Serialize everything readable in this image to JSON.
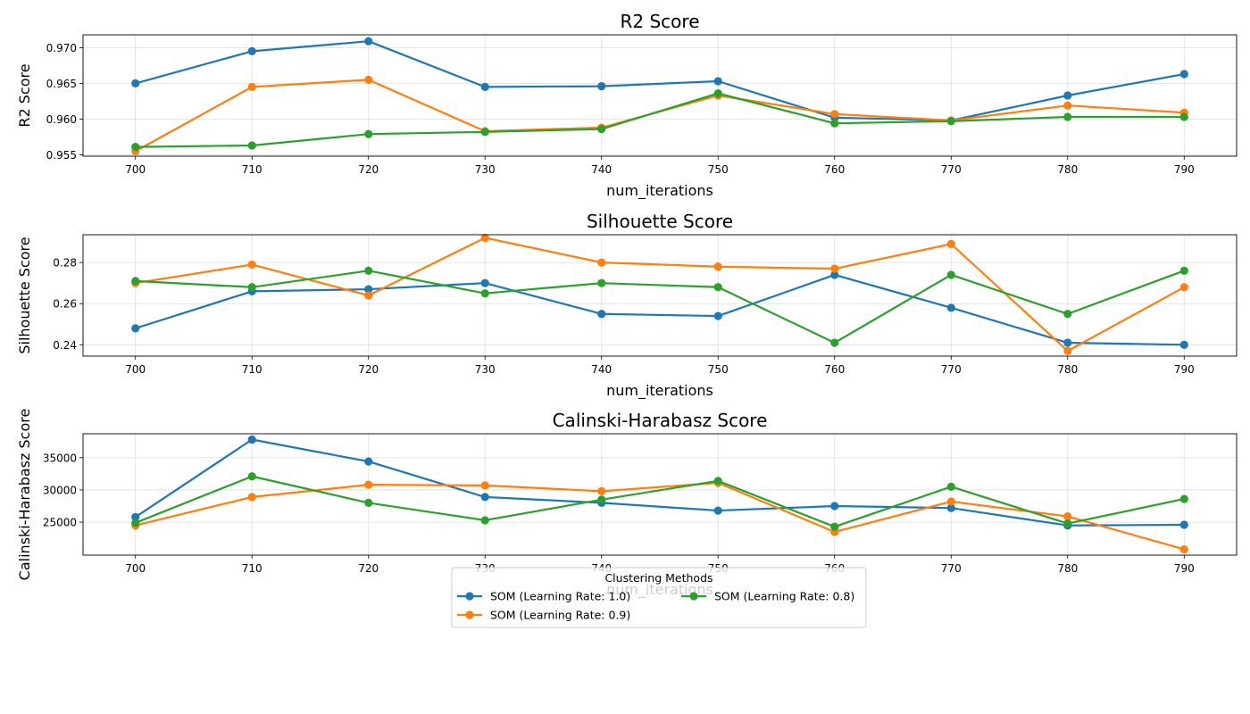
{
  "legend": {
    "title": "Clustering Methods",
    "placement": "lower-center",
    "entries": [
      "SOM (Learning Rate: 1.0)",
      "SOM (Learning Rate: 0.9)",
      "SOM (Learning Rate: 0.8)"
    ]
  },
  "colors": {
    "SOM (Learning Rate: 1.0)": "#1f77b4",
    "SOM (Learning Rate: 0.9)": "#ff7f0e",
    "SOM (Learning Rate: 0.8)": "#2ca02c",
    "grid": "#dddddd",
    "axes": "#000000"
  },
  "chart_data": [
    {
      "type": "line",
      "title": "R2 Score",
      "xlabel": "num_iterations",
      "ylabel": "R2 Score",
      "x": [
        700,
        710,
        720,
        730,
        740,
        750,
        760,
        770,
        780,
        790
      ],
      "xlim": [
        695.5,
        794.5
      ],
      "ylim": [
        0.9548,
        0.9718
      ],
      "yticks": [
        0.955,
        0.96,
        0.965,
        0.97
      ],
      "ytick_labels": [
        "0.955",
        "0.960",
        "0.965",
        "0.970"
      ],
      "grid": true,
      "series": [
        {
          "name": "SOM (Learning Rate: 1.0)",
          "values": [
            0.965,
            0.9695,
            0.9709,
            0.9645,
            0.9646,
            0.9653,
            0.9602,
            0.9598,
            0.9633,
            0.9663
          ]
        },
        {
          "name": "SOM (Learning Rate: 0.9)",
          "values": [
            0.9555,
            0.9645,
            0.9655,
            0.9583,
            0.9588,
            0.9633,
            0.9607,
            0.9598,
            0.9619,
            0.9609
          ]
        },
        {
          "name": "SOM (Learning Rate: 0.8)",
          "values": [
            0.9561,
            0.9563,
            0.9579,
            0.9582,
            0.9586,
            0.9636,
            0.9594,
            0.9597,
            0.9603,
            0.9603
          ]
        }
      ]
    },
    {
      "type": "line",
      "title": "Silhouette Score",
      "xlabel": "num_iterations",
      "ylabel": "Silhouette Score",
      "x": [
        700,
        710,
        720,
        730,
        740,
        750,
        760,
        770,
        780,
        790
      ],
      "xlim": [
        695.5,
        794.5
      ],
      "ylim": [
        0.2345,
        0.2935
      ],
      "yticks": [
        0.24,
        0.26,
        0.28
      ],
      "ytick_labels": [
        "0.24",
        "0.26",
        "0.28"
      ],
      "grid": true,
      "series": [
        {
          "name": "SOM (Learning Rate: 1.0)",
          "values": [
            0.248,
            0.266,
            0.267,
            0.27,
            0.255,
            0.254,
            0.274,
            0.258,
            0.241,
            0.24
          ]
        },
        {
          "name": "SOM (Learning Rate: 0.9)",
          "values": [
            0.27,
            0.279,
            0.264,
            0.292,
            0.28,
            0.278,
            0.277,
            0.289,
            0.237,
            0.268
          ]
        },
        {
          "name": "SOM (Learning Rate: 0.8)",
          "values": [
            0.271,
            0.268,
            0.276,
            0.265,
            0.27,
            0.268,
            0.241,
            0.274,
            0.255,
            0.276
          ]
        }
      ]
    },
    {
      "type": "line",
      "title": "Calinski-Harabasz Score",
      "xlabel": "num_iterations",
      "ylabel": "Calinski-Harabasz Score",
      "x": [
        700,
        710,
        720,
        730,
        740,
        750,
        760,
        770,
        780,
        790
      ],
      "xlim": [
        695.5,
        794.5
      ],
      "ylim": [
        19900,
        38700
      ],
      "yticks": [
        25000,
        30000,
        35000
      ],
      "ytick_labels": [
        "25000",
        "30000",
        "35000"
      ],
      "grid": true,
      "series": [
        {
          "name": "SOM (Learning Rate: 1.0)",
          "values": [
            25800,
            37800,
            34400,
            28900,
            28000,
            26800,
            27500,
            27200,
            24500,
            24600
          ]
        },
        {
          "name": "SOM (Learning Rate: 0.9)",
          "values": [
            24500,
            28900,
            30800,
            30700,
            29800,
            31100,
            23500,
            28200,
            25900,
            20800
          ]
        },
        {
          "name": "SOM (Learning Rate: 0.8)",
          "values": [
            24900,
            32100,
            28000,
            25300,
            28500,
            31400,
            24300,
            30500,
            24800,
            28600
          ]
        }
      ]
    }
  ]
}
